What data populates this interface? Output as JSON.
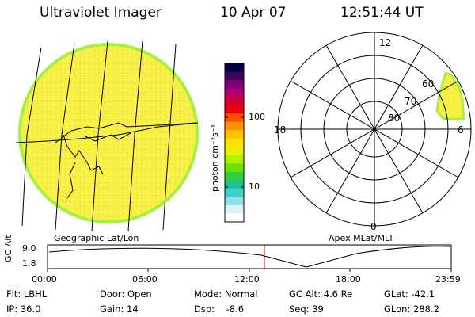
{
  "header": {
    "title": "Ultraviolet Imager",
    "date": "10 Apr 07",
    "time": "12:51:44 UT"
  },
  "colorbar": {
    "unit_label": "photon cm⁻²s⁻¹",
    "ticks": [
      "100",
      "10"
    ],
    "colors": [
      "#000040",
      "#400060",
      "#80007c",
      "#b00070",
      "#d00030",
      "#f00010",
      "#ff5000",
      "#ff9000",
      "#ffc000",
      "#ffe000",
      "#e8f000",
      "#b0f000",
      "#70e000",
      "#30d040",
      "#20c090",
      "#40d0d0",
      "#90e0e8",
      "#d8f0f8",
      "#ffffff"
    ]
  },
  "geo_panel": {
    "label": "Geographic Lat/Lon",
    "fill_color": "#f8f040",
    "edge_color": "#a8f040"
  },
  "polar_panel": {
    "label": "Apex MLat/MLT",
    "mlt_labels": {
      "top": "12",
      "left": "18",
      "right": "6",
      "bottom": "0"
    },
    "lat_labels": [
      "60",
      "70",
      "80"
    ]
  },
  "altitude_plot": {
    "ylabel": "GC Alt",
    "ymax": "9.0",
    "ymin": "1.8",
    "cursor_color": "#cc0000",
    "time_ticks": [
      "00:00",
      "06:00",
      "12:00",
      "18:00",
      "23:59"
    ]
  },
  "info": {
    "flt": "Flt: LBHL",
    "ip": "IP: 36.0",
    "door": "Door: Open",
    "gain": "Gain: 14",
    "mode": "Mode: Normal",
    "dsp": "Dsp:    -8.6",
    "gc_alt": "GC Alt: 4.6 Re",
    "seq": "Seq: 39",
    "glat": "GLat: -42.1",
    "glon": "GLon: 288.2"
  }
}
